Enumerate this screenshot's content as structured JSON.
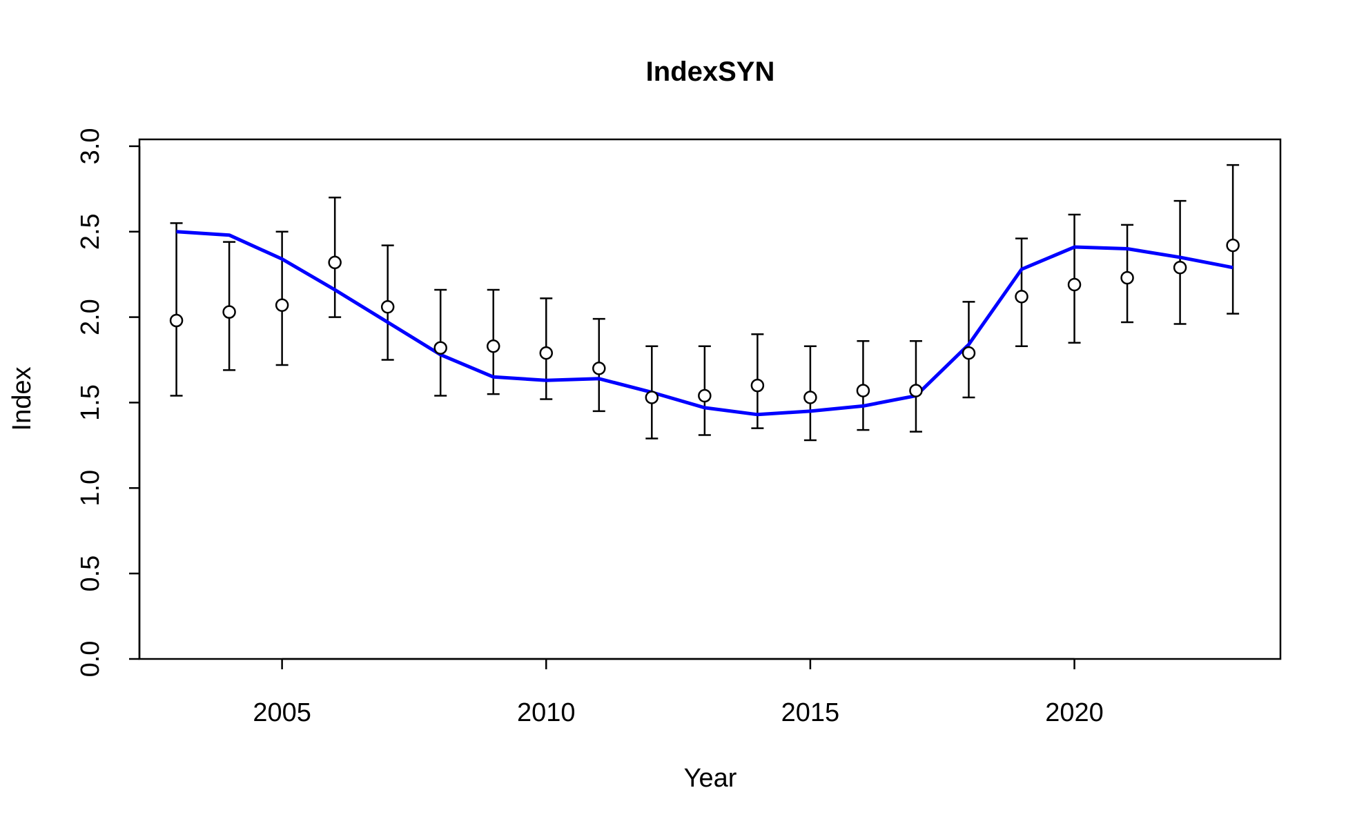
{
  "chart_data": {
    "type": "line",
    "title": "IndexSYN",
    "xlabel": "Year",
    "ylabel": "Index",
    "xlim": [
      2002.3,
      2023.9
    ],
    "ylim": [
      0,
      3.04
    ],
    "xticks": [
      2005,
      2010,
      2015,
      2020
    ],
    "yticks": [
      0.0,
      0.5,
      1.0,
      1.5,
      2.0,
      2.5,
      3.0
    ],
    "ytick_labels": [
      "0.0",
      "0.5",
      "1.0",
      "1.5",
      "2.0",
      "2.5",
      "3.0"
    ],
    "grid": false,
    "legend": "none",
    "x": [
      2003,
      2004,
      2005,
      2006,
      2007,
      2008,
      2009,
      2010,
      2011,
      2012,
      2013,
      2014,
      2015,
      2016,
      2017,
      2018,
      2019,
      2020,
      2021,
      2022,
      2023
    ],
    "series": [
      {
        "type": "points_with_error_bars",
        "color": "#000000",
        "values": [
          1.98,
          2.03,
          2.07,
          2.32,
          2.06,
          1.82,
          1.83,
          1.79,
          1.7,
          1.53,
          1.54,
          1.6,
          1.53,
          1.57,
          1.57,
          1.79,
          2.12,
          2.19,
          2.23,
          2.29,
          2.42
        ],
        "lower": [
          1.54,
          1.69,
          1.72,
          2.0,
          1.75,
          1.54,
          1.55,
          1.52,
          1.45,
          1.29,
          1.31,
          1.35,
          1.28,
          1.34,
          1.33,
          1.53,
          1.83,
          1.85,
          1.97,
          1.96,
          2.02
        ],
        "upper": [
          2.55,
          2.44,
          2.5,
          2.7,
          2.42,
          2.16,
          2.16,
          2.11,
          1.99,
          1.83,
          1.83,
          1.9,
          1.83,
          1.86,
          1.86,
          2.09,
          2.46,
          2.6,
          2.54,
          2.68,
          2.89
        ]
      },
      {
        "type": "line",
        "color": "#0000ff",
        "values": [
          2.5,
          2.48,
          2.34,
          2.16,
          1.97,
          1.78,
          1.65,
          1.63,
          1.64,
          1.56,
          1.47,
          1.43,
          1.45,
          1.48,
          1.54,
          1.84,
          2.28,
          2.41,
          2.4,
          2.35,
          2.29
        ]
      }
    ]
  }
}
